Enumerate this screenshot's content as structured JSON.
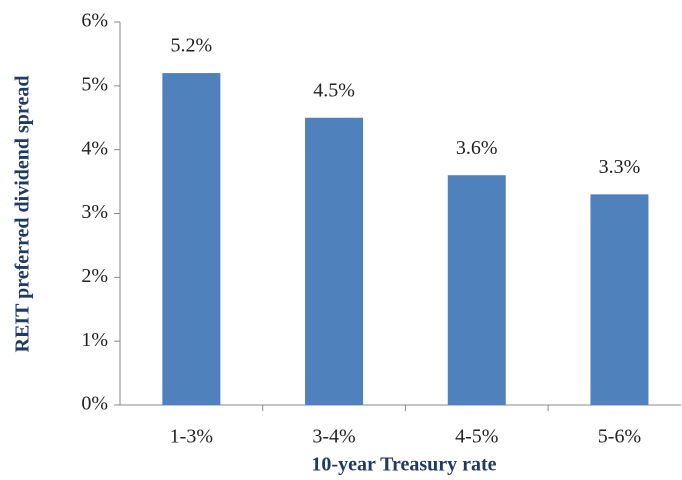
{
  "chart_data": {
    "type": "bar",
    "x_label": "10-year Treasury rate",
    "y_label": "REIT preferred dividend spread",
    "categories": [
      "1-3%",
      "3-4%",
      "4-5%",
      "5-6%"
    ],
    "values": [
      5.2,
      4.5,
      3.6,
      3.3
    ],
    "value_labels": [
      "5.2%",
      "4.5%",
      "3.6%",
      "3.3%"
    ],
    "color": "#4f81bd",
    "ylim": [
      0,
      6
    ],
    "yticks": [
      {
        "value": 0,
        "label": "0%"
      },
      {
        "value": 1,
        "label": "1%"
      },
      {
        "value": 2,
        "label": "2%"
      },
      {
        "value": 3,
        "label": "3%"
      },
      {
        "value": 4,
        "label": "4%"
      },
      {
        "value": 5,
        "label": "5%"
      },
      {
        "value": 6,
        "label": "6%"
      }
    ],
    "grid": false
  }
}
